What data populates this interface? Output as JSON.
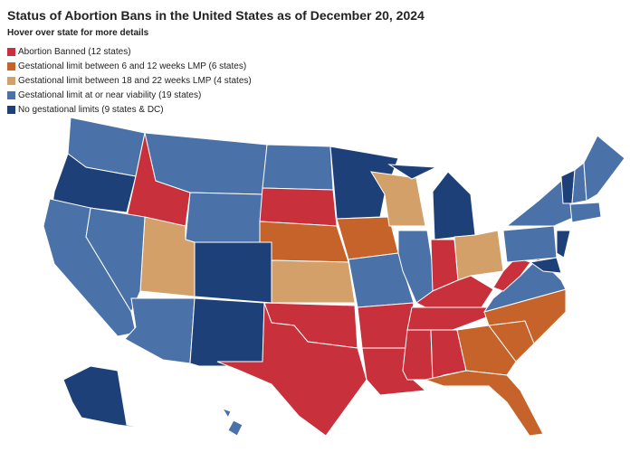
{
  "header": {
    "title": "Status of Abortion Bans in the United States as of December 20, 2024",
    "subtitle": "Hover over state for more details"
  },
  "legend": {
    "items": [
      {
        "label": "Abortion Banned (12 states)",
        "color": "#c8303b"
      },
      {
        "label": "Gestational limit between 6 and 12 weeks LMP (6 states)",
        "color": "#c5632a"
      },
      {
        "label": "Gestational limit between 18 and 22 weeks LMP (4 states)",
        "color": "#d4a06a"
      },
      {
        "label": "Gestational limit at or near viability (19 states)",
        "color": "#4a72a8"
      },
      {
        "label": "No gestational limits (9 states & DC)",
        "color": "#1e4079"
      }
    ]
  }
}
